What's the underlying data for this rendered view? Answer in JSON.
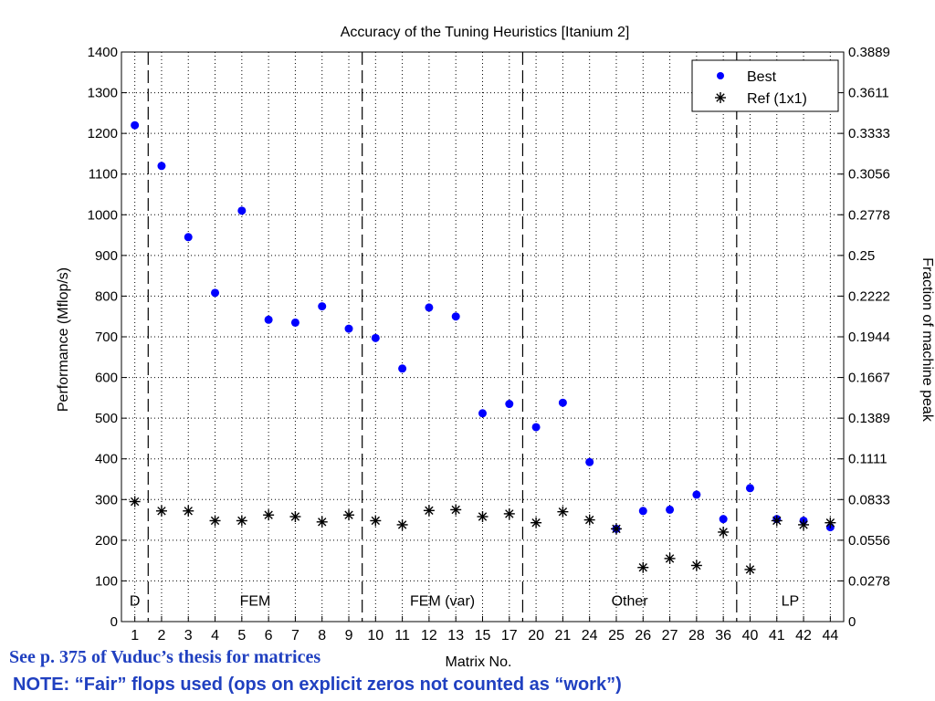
{
  "chart_data": {
    "type": "scatter",
    "title": "Accuracy of the Tuning Heuristics [Itanium 2]",
    "xlabel": "Matrix No.",
    "ylabel": "Performance (Mflop/s)",
    "ylabel_right": "Fraction of machine peak",
    "categories": [
      "1",
      "2",
      "3",
      "4",
      "5",
      "6",
      "7",
      "8",
      "9",
      "10",
      "11",
      "12",
      "13",
      "15",
      "17",
      "20",
      "21",
      "24",
      "25",
      "26",
      "27",
      "28",
      "36",
      "40",
      "41",
      "42",
      "44"
    ],
    "ylim": [
      0,
      1400
    ],
    "yticks": [
      "0",
      "100",
      "200",
      "300",
      "400",
      "500",
      "600",
      "700",
      "800",
      "900",
      "1000",
      "1100",
      "1200",
      "1300",
      "1400"
    ],
    "yticks_right": [
      "0",
      "0.0278",
      "0.0556",
      "0.0833",
      "0.1111",
      "0.1389",
      "0.1667",
      "0.1944",
      "0.2222",
      "0.25",
      "0.2778",
      "0.3056",
      "0.3333",
      "0.3611",
      "0.3889"
    ],
    "grid": true,
    "legend_position": "top-right",
    "series": [
      {
        "name": "Best",
        "marker": "dot",
        "color": "#0000ff",
        "values": [
          1220,
          1120,
          945,
          808,
          1010,
          742,
          735,
          775,
          720,
          697,
          622,
          772,
          750,
          512,
          535,
          478,
          538,
          392,
          228,
          272,
          275,
          312,
          252,
          328,
          252,
          248,
          232
        ]
      },
      {
        "name": "Ref (1x1)",
        "marker": "star",
        "color": "#000000",
        "values": [
          295,
          272,
          272,
          248,
          248,
          262,
          258,
          245,
          262,
          248,
          238,
          273,
          275,
          258,
          265,
          243,
          270,
          250,
          228,
          133,
          155,
          138,
          220,
          128,
          248,
          238,
          243
        ]
      }
    ],
    "groups": [
      {
        "label": "D",
        "start": 0,
        "end": 0
      },
      {
        "label": "FEM",
        "start": 1,
        "end": 8
      },
      {
        "label": "FEM (var)",
        "start": 9,
        "end": 14
      },
      {
        "label": "Other",
        "start": 15,
        "end": 22
      },
      {
        "label": "LP",
        "start": 23,
        "end": 26
      }
    ]
  },
  "notes": {
    "source": "See p. 375 of Vuduc’s thesis for matrices",
    "fair_flops": "NOTE: “Fair” flops used (ops on explicit zeros not counted as “work”)"
  }
}
